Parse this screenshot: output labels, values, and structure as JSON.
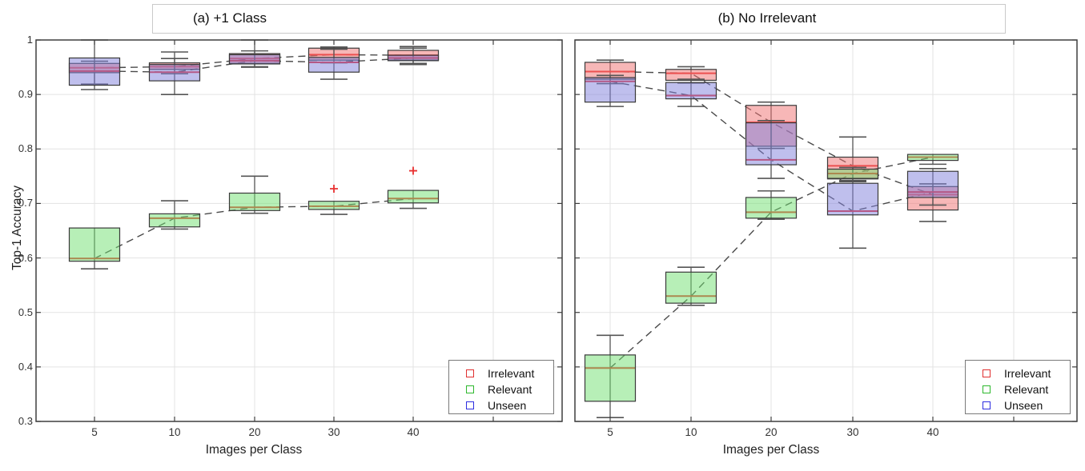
{
  "figure": {
    "ylabel": "Top-1 Accuracy",
    "y_tick_labels": [
      "1",
      "0.9",
      "0.8",
      "0.7",
      "0.6",
      "0.5",
      "0.4",
      "0.3"
    ],
    "x_tick_labels": [
      "5",
      "10",
      "20",
      "30",
      "40"
    ]
  },
  "legend": {
    "items": [
      {
        "label": "Irrelevant",
        "color": "#e03030"
      },
      {
        "label": "Relevant",
        "color": "#2db82d"
      },
      {
        "label": "Unseen",
        "color": "#2d2de0"
      }
    ]
  },
  "style": {
    "grid": "#e3e3e3",
    "frame": "#3f3f3f",
    "box_edge": "#3a3a3a",
    "whisker": "#555555",
    "median": "#e83030",
    "dash_line": "#4a4a4a",
    "outlier": "#e83030",
    "fills": {
      "Irrelevant": {
        "color": "#ef6f6f",
        "opacity": 0.5
      },
      "Relevant": {
        "color": "#70e070",
        "opacity": 0.5
      },
      "Unseen": {
        "color": "#8080dc",
        "opacity": 0.5
      }
    }
  },
  "chart_data": [
    {
      "type": "boxplot",
      "title": "(a) +1 Class",
      "xlabel": "Images per Class",
      "ylabel": "Top-1 Accuracy",
      "ylim": [
        0.3,
        1.0
      ],
      "grid": true,
      "legend_position": "bottom-right",
      "categories": [
        5,
        10,
        20,
        30,
        40
      ],
      "trend_lines": "dashed, connect medians of each series",
      "series": [
        {
          "name": "Irrelevant",
          "boxes": [
            {
              "lo": 0.919,
              "q1": 0.94,
              "med": 0.949,
              "q3": 0.957,
              "hi": 0.961,
              "outliers": []
            },
            {
              "lo": 0.938,
              "q1": 0.946,
              "med": 0.951,
              "q3": 0.958,
              "hi": 0.966,
              "outliers": []
            },
            {
              "lo": 0.951,
              "q1": 0.957,
              "med": 0.966,
              "q3": 0.975,
              "hi": 0.98,
              "outliers": []
            },
            {
              "lo": 0.958,
              "q1": 0.963,
              "med": 0.973,
              "q3": 0.985,
              "hi": 0.987,
              "outliers": []
            },
            {
              "lo": 0.957,
              "q1": 0.963,
              "med": 0.972,
              "q3": 0.981,
              "hi": 0.988,
              "outliers": []
            }
          ]
        },
        {
          "name": "Relevant",
          "boxes": [
            {
              "lo": 0.58,
              "q1": 0.594,
              "med": 0.599,
              "q3": 0.655,
              "hi": 0.655,
              "outliers": []
            },
            {
              "lo": 0.653,
              "q1": 0.657,
              "med": 0.673,
              "q3": 0.681,
              "hi": 0.705,
              "outliers": []
            },
            {
              "lo": 0.682,
              "q1": 0.687,
              "med": 0.693,
              "q3": 0.719,
              "hi": 0.75,
              "outliers": []
            },
            {
              "lo": 0.68,
              "q1": 0.689,
              "med": 0.695,
              "q3": 0.704,
              "hi": 0.704,
              "outliers": [
                0.727
              ]
            },
            {
              "lo": 0.691,
              "q1": 0.701,
              "med": 0.709,
              "q3": 0.724,
              "hi": 0.724,
              "outliers": [
                0.76
              ]
            }
          ]
        },
        {
          "name": "Unseen",
          "boxes": [
            {
              "lo": 0.909,
              "q1": 0.917,
              "med": 0.943,
              "q3": 0.967,
              "hi": 1.0,
              "outliers": []
            },
            {
              "lo": 0.9,
              "q1": 0.925,
              "med": 0.941,
              "q3": 0.955,
              "hi": 0.978,
              "outliers": []
            },
            {
              "lo": 0.95,
              "q1": 0.956,
              "med": 0.962,
              "q3": 0.973,
              "hi": 1.0,
              "outliers": []
            },
            {
              "lo": 0.928,
              "q1": 0.941,
              "med": 0.959,
              "q3": 0.968,
              "hi": 0.983,
              "outliers": []
            },
            {
              "lo": 0.955,
              "q1": 0.962,
              "med": 0.967,
              "q3": 0.972,
              "hi": 0.985,
              "outliers": []
            }
          ]
        }
      ]
    },
    {
      "type": "boxplot",
      "title": "(b) No Irrelevant",
      "xlabel": "Images per Class",
      "ylabel": "Top-1 Accuracy",
      "ylim": [
        0.3,
        1.0
      ],
      "grid": true,
      "legend_position": "bottom-right",
      "categories": [
        5,
        10,
        20,
        30,
        40
      ],
      "trend_lines": "dashed, connect medians of each series",
      "series": [
        {
          "name": "Irrelevant",
          "boxes": [
            {
              "lo": 0.92,
              "q1": 0.928,
              "med": 0.942,
              "q3": 0.959,
              "hi": 0.963,
              "outliers": []
            },
            {
              "lo": 0.921,
              "q1": 0.926,
              "med": 0.939,
              "q3": 0.946,
              "hi": 0.951,
              "outliers": []
            },
            {
              "lo": 0.801,
              "q1": 0.805,
              "med": 0.849,
              "q3": 0.88,
              "hi": 0.886,
              "outliers": []
            },
            {
              "lo": 0.74,
              "q1": 0.745,
              "med": 0.769,
              "q3": 0.785,
              "hi": 0.822,
              "outliers": []
            },
            {
              "lo": 0.667,
              "q1": 0.688,
              "med": 0.716,
              "q3": 0.731,
              "hi": 0.736,
              "outliers": []
            }
          ]
        },
        {
          "name": "Relevant",
          "boxes": [
            {
              "lo": 0.307,
              "q1": 0.337,
              "med": 0.398,
              "q3": 0.422,
              "hi": 0.458,
              "outliers": []
            },
            {
              "lo": 0.513,
              "q1": 0.517,
              "med": 0.53,
              "q3": 0.574,
              "hi": 0.583,
              "outliers": []
            },
            {
              "lo": 0.671,
              "q1": 0.673,
              "med": 0.684,
              "q3": 0.711,
              "hi": 0.723,
              "outliers": []
            },
            {
              "lo": 0.742,
              "q1": 0.746,
              "med": 0.755,
              "q3": 0.763,
              "hi": 0.766,
              "outliers": []
            },
            {
              "lo": 0.772,
              "q1": 0.779,
              "med": 0.785,
              "q3": 0.79,
              "hi": 0.791,
              "outliers": []
            }
          ]
        },
        {
          "name": "Unseen",
          "boxes": [
            {
              "lo": 0.878,
              "q1": 0.886,
              "med": 0.924,
              "q3": 0.931,
              "hi": 0.935,
              "outliers": []
            },
            {
              "lo": 0.878,
              "q1": 0.892,
              "med": 0.898,
              "q3": 0.922,
              "hi": 0.928,
              "outliers": []
            },
            {
              "lo": 0.746,
              "q1": 0.771,
              "med": 0.78,
              "q3": 0.848,
              "hi": 0.852,
              "outliers": []
            },
            {
              "lo": 0.618,
              "q1": 0.679,
              "med": 0.686,
              "q3": 0.737,
              "hi": 0.742,
              "outliers": []
            },
            {
              "lo": 0.697,
              "q1": 0.711,
              "med": 0.721,
              "q3": 0.759,
              "hi": 0.764,
              "outliers": []
            }
          ]
        }
      ]
    }
  ]
}
